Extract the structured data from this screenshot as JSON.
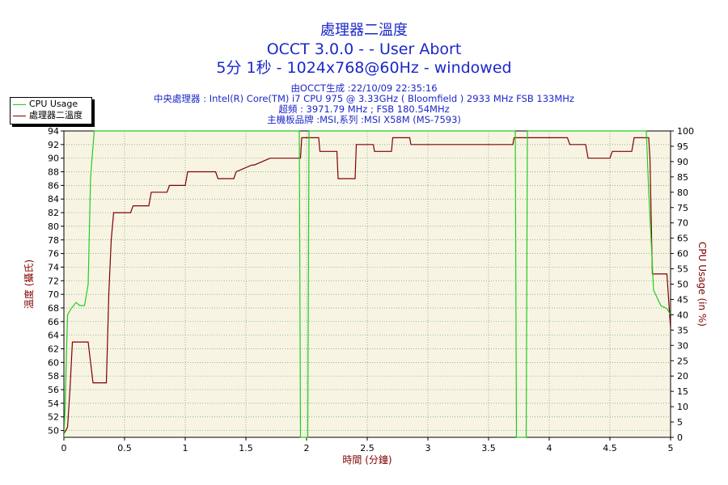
{
  "title": {
    "line1": "處理器二溫度",
    "line2": "OCCT 3.0.0 -  - User Abort",
    "line3": "5分 1秒 - 1024x768@60Hz - windowed"
  },
  "info": {
    "line1": "由OCCT生成 :22/10/09 22:35:16",
    "line2": "中央處理器 : Intel(R) Core(TM) i7 CPU 975 @ 3.33GHz ( Bloomfield ) 2933 MHz FSB 133MHz",
    "line3": "超頻 : 3971.79 MHz ; FSB 180.54MHz",
    "line4": "主機板品牌 :MSI,系列 :MSI X58M (MS-7593)"
  },
  "legend": {
    "cpu_usage": "CPU Usage",
    "temp": "處理器二溫度"
  },
  "colors": {
    "title": "#1c28c8",
    "temp_line": "#800000",
    "cpu_line": "#22cc22",
    "plot_bg": "#f8f4e4",
    "grid": "#60a060"
  },
  "chart_data": {
    "type": "line",
    "title": "處理器二溫度",
    "xlabel": "時間 (分鐘)",
    "ylabel": "溫度 (攝氏)",
    "y2label": "CPU Usage (in %)",
    "xlim": [
      0,
      5
    ],
    "ylim": [
      49,
      94
    ],
    "y2lim": [
      0,
      100
    ],
    "grid": true,
    "legend_position": "top-left",
    "x_ticks": [
      0,
      0.5,
      1,
      1.5,
      2,
      2.5,
      3,
      3.5,
      4,
      4.5,
      5
    ],
    "x_tick_labels": [
      "0",
      "0.5",
      "1",
      "1.5",
      "2",
      "2.5",
      "3",
      "3.5",
      "4",
      "4.5",
      "5"
    ],
    "y_ticks": [
      50,
      52,
      54,
      56,
      58,
      60,
      62,
      64,
      66,
      68,
      70,
      72,
      74,
      76,
      78,
      80,
      82,
      84,
      86,
      88,
      90,
      92,
      94
    ],
    "y2_ticks": [
      0,
      5,
      10,
      15,
      20,
      25,
      30,
      35,
      40,
      45,
      50,
      55,
      60,
      65,
      70,
      75,
      80,
      85,
      90,
      95,
      100
    ],
    "series": [
      {
        "name": "處理器二溫度",
        "axis": "left",
        "x": [
          0,
          0.03,
          0.05,
          0.07,
          0.09,
          0.2,
          0.22,
          0.24,
          0.35,
          0.37,
          0.39,
          0.41,
          0.55,
          0.57,
          0.7,
          0.72,
          0.85,
          0.87,
          1.0,
          1.02,
          1.05,
          1.07,
          1.25,
          1.27,
          1.4,
          1.42,
          1.55,
          1.57,
          1.7,
          1.72,
          1.95,
          1.96,
          2.1,
          2.11,
          2.25,
          2.26,
          2.4,
          2.41,
          2.55,
          2.56,
          2.7,
          2.71,
          2.85,
          2.86,
          3.5,
          3.7,
          3.71,
          4.15,
          4.17,
          4.3,
          4.32,
          4.5,
          4.52,
          4.68,
          4.7,
          4.82,
          4.83,
          4.85,
          4.97,
          5.0
        ],
        "y": [
          49.5,
          50.5,
          56,
          63,
          63,
          63,
          60,
          57,
          57,
          70,
          78,
          82,
          82,
          83,
          83,
          85,
          85,
          86,
          86,
          88,
          88,
          88,
          88,
          87,
          87,
          88,
          89,
          89,
          90,
          90,
          90,
          93,
          93,
          91,
          91,
          87,
          87,
          92,
          92,
          91,
          91,
          93,
          93,
          92,
          92,
          92,
          93,
          93,
          92,
          92,
          90,
          90,
          91,
          91,
          93,
          93,
          90,
          73,
          73,
          65
        ]
      },
      {
        "name": "CPU Usage",
        "axis": "right",
        "x": [
          0,
          0.01,
          0.03,
          0.06,
          0.1,
          0.13,
          0.17,
          0.2,
          0.22,
          0.25,
          0.27,
          1.94,
          1.95,
          1.98,
          2.01,
          2.02,
          3.72,
          3.73,
          3.78,
          3.81,
          3.82,
          4.8,
          4.82,
          4.86,
          4.92,
          4.97,
          5.0
        ],
        "y": [
          0,
          10,
          40,
          42,
          44,
          43,
          43,
          50,
          85,
          100,
          100,
          100,
          0,
          0,
          0,
          100,
          100,
          0,
          0,
          0,
          100,
          100,
          80,
          48,
          43,
          42,
          40
        ]
      }
    ]
  }
}
